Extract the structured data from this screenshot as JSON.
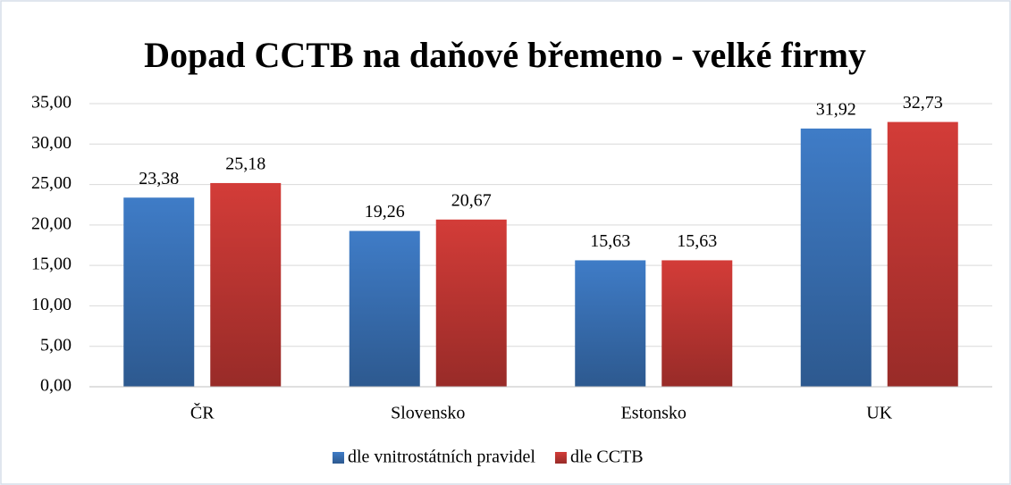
{
  "chart_data": {
    "type": "bar",
    "title": "Dopad CCTB na daňové břemeno - velké firmy",
    "categories": [
      "ČR",
      "Slovensko",
      "Estonsko",
      "UK"
    ],
    "series": [
      {
        "name": "dle vnitrostátních pravidel",
        "color": "#3f7cc7",
        "values": [
          23.38,
          19.26,
          15.63,
          31.92
        ],
        "value_labels": [
          "23,38",
          "19,26",
          "15,63",
          "31,92"
        ]
      },
      {
        "name": "dle CCTB",
        "color": "#d33c38",
        "values": [
          25.18,
          20.67,
          15.63,
          32.73
        ],
        "value_labels": [
          "25,18",
          "20,67",
          "15,63",
          "32,73"
        ]
      }
    ],
    "ylim": [
      0,
      35
    ],
    "yticks": [
      {
        "value": 0,
        "label": "0,00"
      },
      {
        "value": 5,
        "label": "5,00"
      },
      {
        "value": 10,
        "label": "10,00"
      },
      {
        "value": 15,
        "label": "15,00"
      },
      {
        "value": 20,
        "label": "20,00"
      },
      {
        "value": 25,
        "label": "25,00"
      },
      {
        "value": 30,
        "label": "30,00"
      },
      {
        "value": 35,
        "label": "35,00"
      }
    ],
    "grid": true,
    "legend": "bottom"
  }
}
